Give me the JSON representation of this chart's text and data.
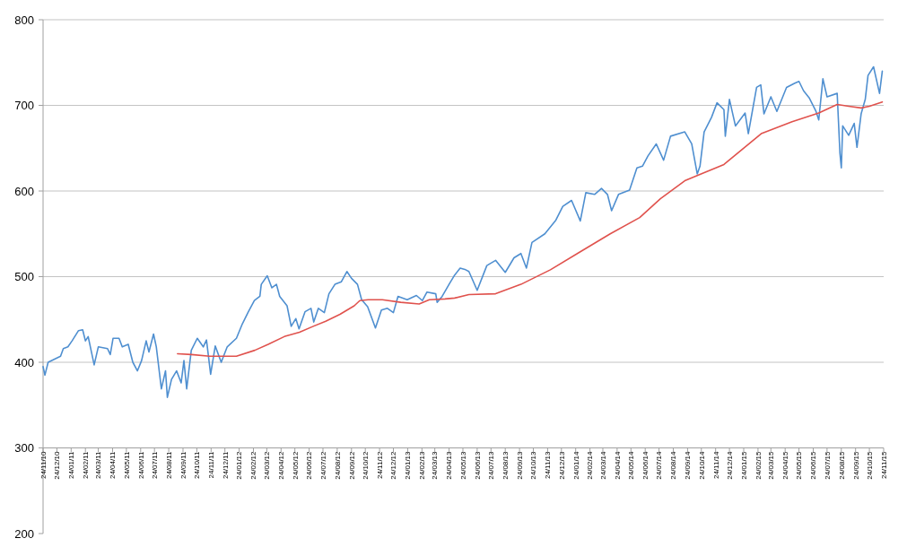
{
  "chart_data": {
    "type": "line",
    "xlim": [
      "2010-11-24",
      "2015-11-24"
    ],
    "xticks": [
      {
        "value": "2010-11-24",
        "label": "24/11/10"
      },
      {
        "value": "2010-12-24",
        "label": "24/12/10"
      },
      {
        "value": "2011-01-24",
        "label": "24/01/11"
      },
      {
        "value": "2011-02-24",
        "label": "24/02/11"
      },
      {
        "value": "2011-03-24",
        "label": "24/03/11"
      },
      {
        "value": "2011-04-24",
        "label": "24/04/11"
      },
      {
        "value": "2011-05-24",
        "label": "24/05/11"
      },
      {
        "value": "2011-06-24",
        "label": "24/06/11"
      },
      {
        "value": "2011-07-24",
        "label": "24/07/11"
      },
      {
        "value": "2011-08-24",
        "label": "24/08/11"
      },
      {
        "value": "2011-09-24",
        "label": "24/09/11"
      },
      {
        "value": "2011-10-24",
        "label": "24/10/11"
      },
      {
        "value": "2011-11-24",
        "label": "24/11/11"
      },
      {
        "value": "2011-12-24",
        "label": "24/12/11"
      },
      {
        "value": "2012-01-24",
        "label": "24/01/12"
      },
      {
        "value": "2012-02-24",
        "label": "24/02/12"
      },
      {
        "value": "2012-03-24",
        "label": "24/03/12"
      },
      {
        "value": "2012-04-24",
        "label": "24/04/12"
      },
      {
        "value": "2012-05-24",
        "label": "24/05/12"
      },
      {
        "value": "2012-06-24",
        "label": "24/06/12"
      },
      {
        "value": "2012-07-24",
        "label": "24/07/12"
      },
      {
        "value": "2012-08-24",
        "label": "24/08/12"
      },
      {
        "value": "2012-09-24",
        "label": "24/09/12"
      },
      {
        "value": "2012-10-24",
        "label": "24/10/12"
      },
      {
        "value": "2012-11-24",
        "label": "24/11/12"
      },
      {
        "value": "2012-12-24",
        "label": "24/12/12"
      },
      {
        "value": "2013-01-24",
        "label": "24/01/13"
      },
      {
        "value": "2013-02-24",
        "label": "24/02/13"
      },
      {
        "value": "2013-03-24",
        "label": "24/03/13"
      },
      {
        "value": "2013-04-24",
        "label": "24/04/13"
      },
      {
        "value": "2013-05-24",
        "label": "24/05/13"
      },
      {
        "value": "2013-06-24",
        "label": "24/06/13"
      },
      {
        "value": "2013-07-24",
        "label": "24/07/13"
      },
      {
        "value": "2013-08-24",
        "label": "24/08/13"
      },
      {
        "value": "2013-09-24",
        "label": "24/09/13"
      },
      {
        "value": "2013-10-24",
        "label": "24/10/13"
      },
      {
        "value": "2013-11-24",
        "label": "24/11/13"
      },
      {
        "value": "2013-12-24",
        "label": "24/12/13"
      },
      {
        "value": "2014-01-24",
        "label": "24/01/14"
      },
      {
        "value": "2014-02-24",
        "label": "24/02/14"
      },
      {
        "value": "2014-03-24",
        "label": "24/03/14"
      },
      {
        "value": "2014-04-24",
        "label": "24/04/14"
      },
      {
        "value": "2014-05-24",
        "label": "24/05/14"
      },
      {
        "value": "2014-06-24",
        "label": "24/06/14"
      },
      {
        "value": "2014-07-24",
        "label": "24/07/14"
      },
      {
        "value": "2014-08-24",
        "label": "24/08/14"
      },
      {
        "value": "2014-09-24",
        "label": "24/09/14"
      },
      {
        "value": "2014-10-24",
        "label": "24/10/14"
      },
      {
        "value": "2014-11-24",
        "label": "24/11/14"
      },
      {
        "value": "2014-12-24",
        "label": "24/12/14"
      },
      {
        "value": "2015-01-24",
        "label": "24/01/15"
      },
      {
        "value": "2015-02-24",
        "label": "24/02/15"
      },
      {
        "value": "2015-03-24",
        "label": "24/03/15"
      },
      {
        "value": "2015-04-24",
        "label": "24/04/15"
      },
      {
        "value": "2015-05-24",
        "label": "24/05/15"
      },
      {
        "value": "2015-06-24",
        "label": "24/06/15"
      },
      {
        "value": "2015-07-24",
        "label": "24/07/15"
      },
      {
        "value": "2015-08-24",
        "label": "24/08/15"
      },
      {
        "value": "2015-09-24",
        "label": "24/09/15"
      },
      {
        "value": "2015-10-24",
        "label": "24/10/15"
      },
      {
        "value": "2015-11-24",
        "label": "24/11/15"
      }
    ],
    "ylim": [
      200,
      800
    ],
    "yticks": [
      200,
      300,
      400,
      500,
      600,
      700,
      800
    ],
    "grid": "y",
    "series": [
      {
        "color": "#4f8fd0",
        "x": [
          "2010-11-24",
          "2010-11-28",
          "2010-12-05",
          "2011-01-01",
          "2011-01-07",
          "2011-01-17",
          "2011-01-26",
          "2011-02-09",
          "2011-02-18",
          "2011-02-24",
          "2011-03-02",
          "2011-03-15",
          "2011-03-24",
          "2011-04-13",
          "2011-04-19",
          "2011-04-25",
          "2011-05-08",
          "2011-05-15",
          "2011-05-28",
          "2011-06-07",
          "2011-06-17",
          "2011-06-26",
          "2011-07-06",
          "2011-07-12",
          "2011-07-22",
          "2011-07-28",
          "2011-08-08",
          "2011-08-17",
          "2011-08-21",
          "2011-08-30",
          "2011-09-10",
          "2011-09-20",
          "2011-09-26",
          "2011-10-02",
          "2011-10-12",
          "2011-10-25",
          "2011-11-07",
          "2011-11-14",
          "2011-11-23",
          "2011-12-03",
          "2011-12-16",
          "2011-12-29",
          "2012-01-18",
          "2012-01-31",
          "2012-02-13",
          "2012-02-26",
          "2012-03-09",
          "2012-03-12",
          "2012-03-25",
          "2012-04-04",
          "2012-04-14",
          "2012-04-21",
          "2012-05-07",
          "2012-05-16",
          "2012-05-26",
          "2012-06-02",
          "2012-06-15",
          "2012-06-28",
          "2012-07-04",
          "2012-07-14",
          "2012-07-27",
          "2012-08-06",
          "2012-08-19",
          "2012-09-02",
          "2012-09-14",
          "2012-09-24",
          "2012-10-07",
          "2012-10-16",
          "2012-10-29",
          "2012-11-15",
          "2012-11-28",
          "2012-12-11",
          "2012-12-24",
          "2013-01-03",
          "2013-01-23",
          "2013-02-12",
          "2013-02-25",
          "2013-03-07",
          "2013-03-26",
          "2013-03-29",
          "2013-04-09",
          "2013-04-25",
          "2013-05-05",
          "2013-05-18",
          "2013-05-30",
          "2013-06-06",
          "2013-06-24",
          "2013-07-15",
          "2013-08-03",
          "2013-08-24",
          "2013-09-12",
          "2013-09-27",
          "2013-10-09",
          "2013-10-21",
          "2013-11-18",
          "2013-12-12",
          "2013-12-27",
          "2014-01-15",
          "2014-02-03",
          "2014-02-15",
          "2014-03-06",
          "2014-03-21",
          "2014-04-03",
          "2014-04-12",
          "2014-04-27",
          "2014-05-21",
          "2014-06-06",
          "2014-06-18",
          "2014-06-30",
          "2014-07-18",
          "2014-08-03",
          "2014-08-18",
          "2014-09-18",
          "2014-10-03",
          "2014-10-15",
          "2014-10-21",
          "2014-10-30",
          "2014-11-15",
          "2014-11-27",
          "2014-12-12",
          "2014-12-15",
          "2014-12-24",
          "2015-01-06",
          "2015-01-27",
          "2015-02-03",
          "2015-02-21",
          "2015-03-02",
          "2015-03-09",
          "2015-03-24",
          "2015-04-06",
          "2015-04-27",
          "2015-05-15",
          "2015-05-24",
          "2015-06-03",
          "2015-06-15",
          "2015-06-30",
          "2015-07-06",
          "2015-07-15",
          "2015-07-24",
          "2015-08-15",
          "2015-08-21",
          "2015-08-24",
          "2015-08-27",
          "2015-09-09",
          "2015-09-21",
          "2015-09-27",
          "2015-10-06",
          "2015-10-15",
          "2015-10-21",
          "2015-11-02",
          "2015-11-15",
          "2015-11-21"
        ],
        "values": [
          395,
          385,
          400,
          407,
          416,
          418,
          425,
          437,
          438,
          425,
          430,
          397,
          418,
          416,
          409,
          428,
          428,
          418,
          421,
          400,
          390,
          402,
          425,
          412,
          433,
          418,
          369,
          390,
          359,
          380,
          390,
          376,
          402,
          369,
          414,
          428,
          418,
          426,
          386,
          419,
          400,
          418,
          428,
          445,
          459,
          472,
          477,
          491,
          501,
          487,
          491,
          477,
          466,
          442,
          451,
          439,
          459,
          463,
          447,
          463,
          458,
          480,
          491,
          494,
          506,
          498,
          491,
          473,
          465,
          440,
          461,
          463,
          458,
          477,
          473,
          478,
          472,
          482,
          480,
          470,
          477,
          492,
          501,
          510,
          508,
          506,
          484,
          513,
          519,
          505,
          522,
          527,
          510,
          540,
          550,
          566,
          582,
          589,
          565,
          598,
          596,
          603,
          596,
          577,
          596,
          601,
          627,
          629,
          641,
          655,
          636,
          664,
          669,
          655,
          620,
          629,
          669,
          686,
          703,
          695,
          664,
          707,
          676,
          691,
          667,
          721,
          724,
          690,
          710,
          693,
          721,
          726,
          728,
          717,
          709,
          693,
          683,
          731,
          710,
          714,
          644,
          627,
          676,
          665,
          679,
          651,
          690,
          707,
          735,
          745,
          714,
          740
        ]
      },
      {
        "color": "#e0524d",
        "x": [
          "2011-09-12",
          "2011-10-12",
          "2011-11-21",
          "2012-01-18",
          "2012-02-27",
          "2012-03-27",
          "2012-05-01",
          "2012-06-03",
          "2012-07-03",
          "2012-07-30",
          "2012-08-30",
          "2012-09-30",
          "2012-10-12",
          "2012-10-30",
          "2012-11-30",
          "2013-01-09",
          "2013-02-18",
          "2013-03-12",
          "2013-04-15",
          "2013-05-06",
          "2013-06-06",
          "2013-08-03",
          "2013-09-27",
          "2013-11-30",
          "2014-02-03",
          "2014-04-09",
          "2014-06-12",
          "2014-07-27",
          "2014-09-18",
          "2014-10-15",
          "2014-12-12",
          "2015-03-03",
          "2015-05-09",
          "2015-07-06",
          "2015-08-15",
          "2015-09-09",
          "2015-10-06",
          "2015-10-24",
          "2015-11-21"
        ],
        "values": [
          410,
          409,
          407,
          407,
          414,
          421,
          430,
          435,
          442,
          448,
          456,
          466,
          472,
          473,
          473,
          470,
          468,
          473,
          474,
          475,
          479,
          480,
          491,
          508,
          529,
          550,
          569,
          591,
          612,
          618,
          631,
          667,
          681,
          691,
          701,
          699,
          697,
          699,
          704
        ]
      }
    ]
  }
}
